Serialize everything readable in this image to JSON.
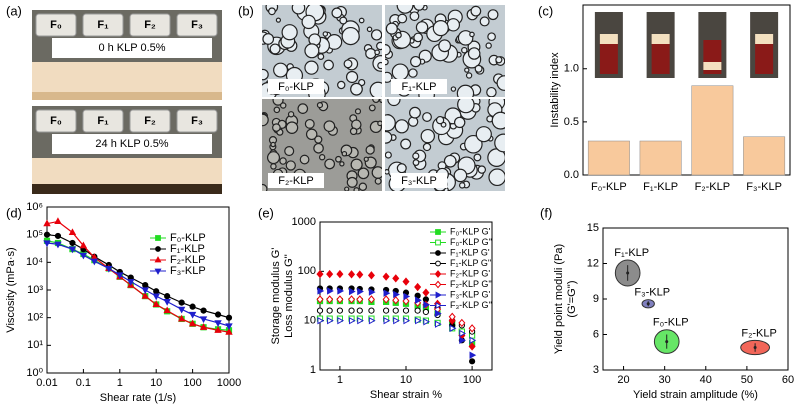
{
  "panel_labels": [
    "(a)",
    "(b)",
    "(c)",
    "(d)",
    "(e)",
    "(f)"
  ],
  "photos_a": {
    "vial_labels": [
      "F₀",
      "F₁",
      "F₂",
      "F₃"
    ],
    "captions": [
      "0 h KLP 0.5%",
      "24 h KLP 0.5%"
    ]
  },
  "photos_b": {
    "labels": [
      "F₀-KLP",
      "F₁-KLP",
      "F₂-KLP",
      "F₃-KLP"
    ]
  },
  "chart_data": [
    {
      "type": "bar",
      "ylabel": "Instability index",
      "categories": [
        "F₀-KLP",
        "F₁-KLP",
        "F₂-KLP",
        "F₃-KLP"
      ],
      "values": [
        0.32,
        0.32,
        0.84,
        0.36
      ],
      "color": "#f8c99c",
      "ylim": [
        0,
        1.6
      ],
      "yticks": [
        {
          "value": 0,
          "label": "0.0"
        },
        {
          "value": 0.5,
          "label": "0.5"
        },
        {
          "value": 1,
          "label": "1.0"
        }
      ]
    },
    {
      "type": "line",
      "xlabel": "Shear rate (1/s)",
      "ylabel": "Viscosity (mPa·s)",
      "xscale": "log",
      "yscale": "log",
      "x": [
        0.01,
        0.02,
        0.05,
        0.1,
        0.2,
        0.5,
        1,
        2,
        5,
        10,
        20,
        50,
        100,
        200,
        500,
        1000
      ],
      "xlim": [
        0.01,
        1000
      ],
      "xticks": [
        0.01,
        0.1,
        1,
        10,
        100,
        1000
      ],
      "ylim": [
        1,
        1000000
      ],
      "yticks": [
        {
          "value": 1,
          "label": "10⁰"
        },
        {
          "value": 10,
          "label": "10¹"
        },
        {
          "value": 100,
          "label": "10²"
        },
        {
          "value": 1000,
          "label": "10³"
        },
        {
          "value": 10000,
          "label": "10⁴"
        },
        {
          "value": 100000,
          "label": "10⁵"
        },
        {
          "value": 1000000,
          "label": "10⁶"
        }
      ],
      "series": [
        {
          "name": "F₀-KLP",
          "color": "#22dd22",
          "marker": "square",
          "filled": true,
          "values": [
            60000,
            50000,
            30000,
            20000,
            12000,
            6000,
            3000,
            1500,
            600,
            300,
            170,
            90,
            60,
            45,
            38,
            35
          ]
        },
        {
          "name": "F₁-KLP",
          "color": "#000000",
          "marker": "circle",
          "filled": true,
          "values": [
            100000,
            90000,
            50000,
            30000,
            16000,
            8000,
            4500,
            2800,
            1500,
            900,
            600,
            350,
            250,
            180,
            130,
            100
          ]
        },
        {
          "name": "F₂-KLP",
          "color": "#e8000b",
          "marker": "triangle",
          "filled": true,
          "values": [
            250000,
            300000,
            120000,
            40000,
            15000,
            6000,
            3000,
            1500,
            600,
            300,
            180,
            90,
            60,
            45,
            35,
            30
          ]
        },
        {
          "name": "F₃-KLP",
          "color": "#1f1fcc",
          "marker": "down",
          "filled": true,
          "values": [
            50000,
            45000,
            30000,
            18000,
            11000,
            6000,
            3500,
            2000,
            1000,
            600,
            380,
            200,
            130,
            90,
            65,
            50
          ]
        }
      ]
    },
    {
      "type": "scatter",
      "xlabel": "Shear strain %",
      "ylabel": [
        "Storage modulus G'",
        "Loss modulus G''"
      ],
      "xscale": "log",
      "yscale": "log",
      "x": [
        0.5,
        0.7,
        1,
        1.5,
        2,
        3,
        5,
        7,
        10,
        15,
        20,
        30,
        50,
        70,
        100
      ],
      "xlim": [
        0.5,
        200
      ],
      "xticks": [
        1,
        10,
        100
      ],
      "ylim": [
        1,
        1000
      ],
      "yticks": [
        1,
        10,
        100,
        1000
      ],
      "series": [
        {
          "name": "F₀-KLP G'",
          "color": "#22dd22",
          "marker": "square",
          "filled": true,
          "values": [
            25,
            25,
            25,
            25,
            25,
            24,
            24,
            23,
            22,
            20,
            18,
            14,
            9,
            6,
            3.5
          ]
        },
        {
          "name": "F₀-KLP G''",
          "color": "#22dd22",
          "marker": "square",
          "filled": false,
          "values": [
            11,
            11,
            11,
            11,
            11,
            11,
            11,
            11,
            11,
            10.5,
            10,
            9,
            7,
            6,
            5
          ]
        },
        {
          "name": "F₁-KLP G'",
          "color": "#000000",
          "marker": "circle",
          "filled": true,
          "values": [
            45,
            45,
            45,
            45,
            44,
            43,
            42,
            40,
            37,
            32,
            27,
            18,
            8,
            4,
            1.5
          ]
        },
        {
          "name": "F₁-KLP G''",
          "color": "#000000",
          "marker": "circle",
          "filled": false,
          "values": [
            16,
            16,
            16,
            16,
            16,
            16,
            16,
            16,
            16,
            16,
            15,
            13,
            10,
            8,
            6
          ]
        },
        {
          "name": "F₂-KLP G'",
          "color": "#e8000b",
          "marker": "diamond",
          "filled": true,
          "values": [
            88,
            88,
            88,
            87,
            86,
            83,
            78,
            72,
            62,
            48,
            37,
            22,
            10,
            5,
            3
          ]
        },
        {
          "name": "F₂-KLP G''",
          "color": "#e8000b",
          "marker": "diamond",
          "filled": false,
          "values": [
            27,
            27,
            27,
            27,
            27,
            27,
            27,
            26,
            25,
            23,
            21,
            17,
            12,
            9,
            7
          ]
        },
        {
          "name": "F₃-KLP G'",
          "color": "#1f1fcc",
          "marker": "right",
          "filled": true,
          "values": [
            40,
            40,
            40,
            39,
            39,
            38,
            36,
            34,
            31,
            26,
            21,
            14,
            7,
            4,
            2
          ]
        },
        {
          "name": "F₃-KLP G''",
          "color": "#1f1fcc",
          "marker": "right",
          "filled": false,
          "values": [
            10,
            10,
            10,
            10,
            10,
            10,
            10,
            10,
            10,
            10,
            9.5,
            8.5,
            7,
            5.5,
            4
          ]
        }
      ]
    },
    {
      "type": "bubble",
      "xlabel": "Yield strain amplitude (%)",
      "ylabel": [
        "Yield point moduli (Pa)",
        "(G'=G'')"
      ],
      "xlim": [
        15,
        60
      ],
      "xticks": [
        20,
        30,
        40,
        50,
        60
      ],
      "ylim": [
        3,
        15
      ],
      "yticks": [
        3,
        6,
        9,
        12,
        15
      ],
      "series": [
        {
          "name": "F₁-KLP",
          "color": "#666666",
          "x": [
            21
          ],
          "values": [
            11.2
          ],
          "x_err": [
            3
          ],
          "y_err": [
            1.1
          ]
        },
        {
          "name": "F₃-KLP",
          "color": "#5555aa",
          "x": [
            26
          ],
          "values": [
            8.6
          ],
          "x_err": [
            1.5
          ],
          "y_err": [
            0.35
          ]
        },
        {
          "name": "F₀-KLP",
          "color": "#33dd33",
          "x": [
            30.5
          ],
          "values": [
            5.4
          ],
          "x_err": [
            3
          ],
          "y_err": [
            1
          ]
        },
        {
          "name": "F₂-KLP",
          "color": "#ee3322",
          "x": [
            52
          ],
          "values": [
            4.9
          ],
          "x_err": [
            3.5
          ],
          "y_err": [
            0.6
          ]
        }
      ]
    }
  ]
}
